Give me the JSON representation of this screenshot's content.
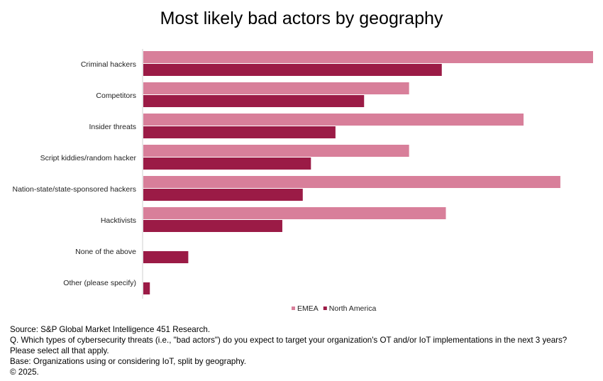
{
  "chart_data": {
    "type": "bar",
    "orientation": "horizontal",
    "title": "Most likely bad actors by geography",
    "categories": [
      "Criminal hackers",
      "Competitors",
      "Insider threats",
      "Script kiddies/random hacker",
      "Nation-state/state-sponsored hackers",
      "Hacktivists",
      "None of the above",
      "Other (please specify)"
    ],
    "series": [
      {
        "name": "EMEA",
        "color": "#d87f9a",
        "values": [
          55,
          32.5,
          46.5,
          32.5,
          51,
          37,
          0,
          0
        ]
      },
      {
        "name": "North America",
        "color": "#9b1b46",
        "values": [
          36.5,
          27,
          23.5,
          20.5,
          19.5,
          17,
          5.5,
          0.8
        ]
      }
    ],
    "xlim": [
      0,
      55
    ],
    "grid": false,
    "legend_position": "bottom-center"
  },
  "footer": {
    "source": "Source: S&P Global Market Intelligence 451 Research.",
    "question": "Q. Which types of cybersecurity threats (i.e., \"bad actors\") do you expect to target your organization's OT and/or IoT implementations in the next 3 years? Please select all that apply.",
    "base": "Base: Organizations using or considering IoT, split by geography.",
    "copyright": "© 2025."
  }
}
